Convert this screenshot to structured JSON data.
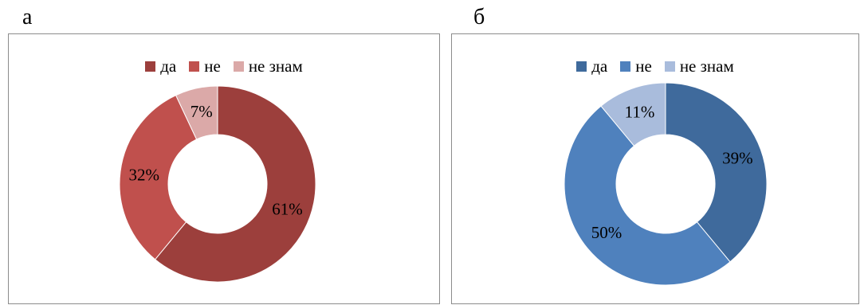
{
  "panels": [
    {
      "letter": "а"
    },
    {
      "letter": "б"
    }
  ],
  "chart_data": [
    {
      "type": "pie",
      "donut": true,
      "legend_position": "top",
      "categories": [
        "да",
        "не",
        "не знам"
      ],
      "values": [
        61,
        32,
        7
      ],
      "labels": [
        "61%",
        "32%",
        "7%"
      ],
      "colors": [
        "#9c3f3c",
        "#c0504d",
        "#dba9a8"
      ]
    },
    {
      "type": "pie",
      "donut": true,
      "legend_position": "top",
      "categories": [
        "да",
        "не",
        "не знам"
      ],
      "values": [
        39,
        50,
        11
      ],
      "labels": [
        "39%",
        "50%",
        "11%"
      ],
      "colors": [
        "#3f6a9c",
        "#4f81bd",
        "#a9bcdc"
      ]
    }
  ]
}
